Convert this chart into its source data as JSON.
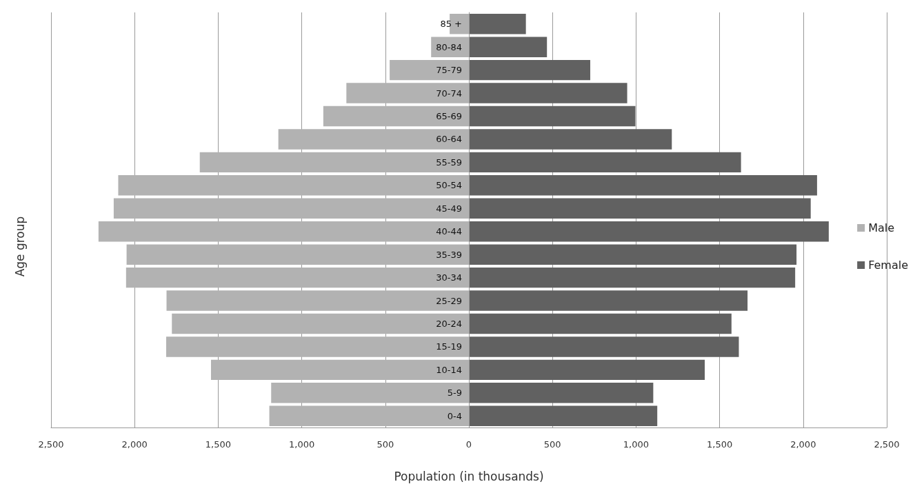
{
  "chart_data": {
    "type": "bar",
    "orientation": "horizontal",
    "xlabel": "Population (in thousands)",
    "ylabel": "Age group",
    "categories": [
      "85 +",
      "80-84",
      "75-79",
      "70-74",
      "65-69",
      "60-64",
      "55-59",
      "50-54",
      "45-49",
      "40-44",
      "35-39",
      "30-34",
      "25-29",
      "20-24",
      "15-19",
      "10-14",
      "5-9",
      "0-4"
    ],
    "series": [
      {
        "name": "Male",
        "color": "#b2b2b2",
        "values": [
          -115,
          -226,
          -474,
          -733,
          -871,
          -1140,
          -1610,
          -2098,
          -2125,
          -2216,
          -2048,
          -2051,
          -1809,
          -1777,
          -1811,
          -1543,
          -1183,
          -1194
        ]
      },
      {
        "name": "Female",
        "color": "#616161",
        "values": [
          341,
          467,
          726,
          947,
          996,
          1214,
          1628,
          2083,
          2045,
          2153,
          1960,
          1952,
          1667,
          1571,
          1615,
          1411,
          1103,
          1127
        ]
      }
    ],
    "xlim": [
      -2500,
      2500
    ],
    "xticks": [
      {
        "value": -2500,
        "label": "2,500"
      },
      {
        "value": -2000,
        "label": "2,000"
      },
      {
        "value": -1500,
        "label": "1,500"
      },
      {
        "value": -1000,
        "label": "1,000"
      },
      {
        "value": -500,
        "label": "500"
      },
      0,
      500,
      {
        "value": 1000,
        "label": "1,000"
      },
      {
        "value": 1500,
        "label": "1,500"
      },
      {
        "value": 2000,
        "label": "2,000"
      },
      {
        "value": 2500,
        "label": "2,500"
      }
    ],
    "grid": "x",
    "legend": "right",
    "stacked": true
  }
}
